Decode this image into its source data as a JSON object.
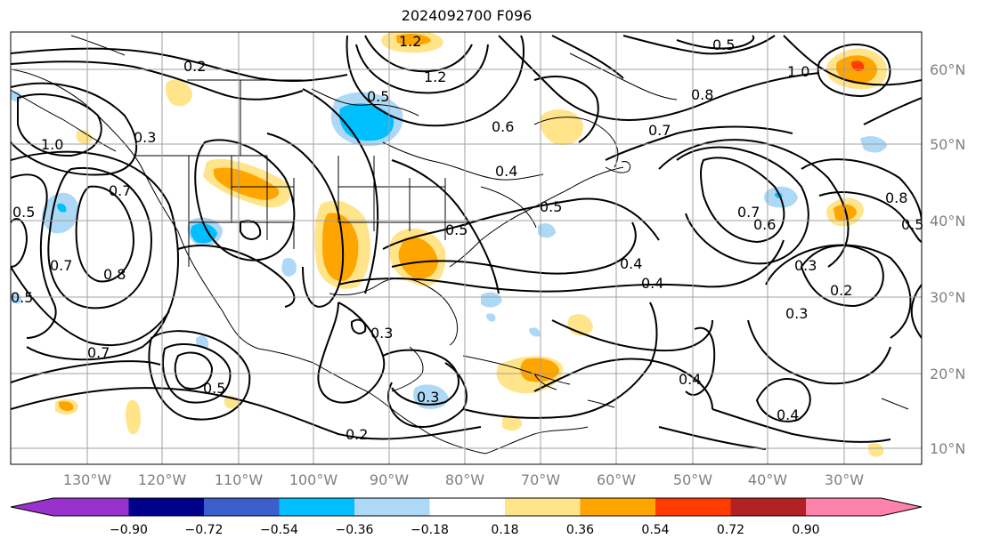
{
  "title": "2024092700 F096",
  "lat_labels": [
    "60°N",
    "50°N",
    "40°N",
    "30°N",
    "20°N",
    "10°N"
  ],
  "lon_labels": [
    "130°W",
    "120°W",
    "110°W",
    "100°W",
    "90°W",
    "80°W",
    "70°W",
    "60°W",
    "50°W",
    "40°W",
    "30°W"
  ],
  "colorbar": {
    "colors": [
      "#9932cc",
      "#00008b",
      "#3a5fcd",
      "#00bfff",
      "#add8f6",
      "#ffffff",
      "#ffe48a",
      "#ffa500",
      "#ff3b00",
      "#b22222",
      "#ff82ab"
    ],
    "tick_labels": [
      "−0.90",
      "−0.72",
      "−0.54",
      "−0.36",
      "−0.18",
      "0.18",
      "0.36",
      "0.54",
      "0.72",
      "0.90"
    ]
  },
  "contour_labels": [
    "0.2",
    "1.2",
    "0.5",
    "1.2",
    "0.6",
    "0.5",
    "1.0",
    "0.8",
    "1.0",
    "0.3",
    "0.7",
    "0.5",
    "0.7",
    "0.8",
    "0.4",
    "0.5",
    "0.5",
    "0.7",
    "0.6",
    "0.8",
    "0.5",
    "0.4",
    "0.4",
    "0.3",
    "0.2",
    "0.3",
    "0.3",
    "0.7",
    "0.5",
    "0.3",
    "0.4",
    "0.4",
    "0.2",
    "0.7",
    "0.5"
  ]
}
